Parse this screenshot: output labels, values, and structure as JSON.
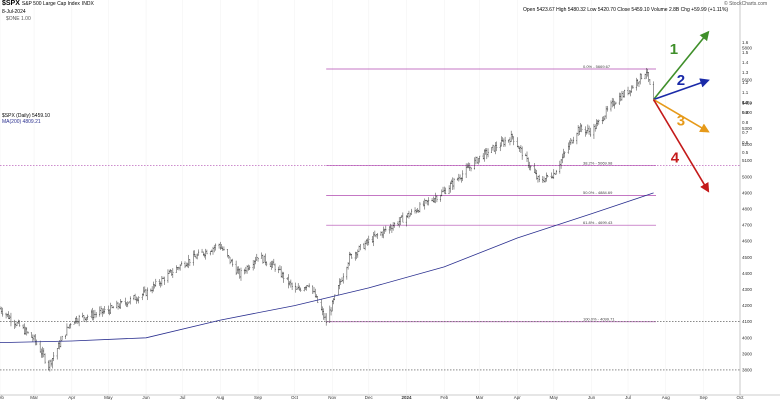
{
  "header": {
    "symbol": "$SPX",
    "name": "S&P 500 Large Cap Index",
    "exchange": "INDX",
    "date": "8-Jul-2024",
    "indicator": "$ONE 1.00",
    "ohlc": "Open 5423.67  High 5480.32  Low 5420.70  Close 5459.10  Volume 2.8B  Chg +59.99 (+1.11%)",
    "brand": "© StockCharts.com",
    "legend_price": "$SPX (Daily) 5459.10",
    "legend_ma": "MA(200) 4809.21"
  },
  "colors": {
    "bars": "#222222",
    "ma": "#2a2f8f",
    "fib": "#b04ab0",
    "arrow1": "#3f8f2a",
    "arrow2": "#1a2aa8",
    "arrow3": "#e69a1a",
    "arrow4": "#c41a1a"
  },
  "chart_data": {
    "type": "line",
    "ylim": [
      3750,
      5850
    ],
    "x_range": [
      "2023-02-01",
      "2024-10-01"
    ],
    "x_ticks": [
      "Feb",
      "Mar",
      "Apr",
      "May",
      "Jun",
      "Jul",
      "Aug",
      "Sep",
      "Oct",
      "Nov",
      "Dec",
      "2024",
      "Feb",
      "Mar",
      "Apr",
      "May",
      "Jun",
      "Jul",
      "Aug",
      "Sep",
      "Oct"
    ],
    "right_axis_labels": [
      "1.6",
      "1.5",
      "1.4",
      "1.3",
      "1.2",
      "1.1",
      "1.0",
      "0.9",
      "0.8",
      "0.7",
      "0.6",
      "0.5",
      "5800",
      "5600",
      "5459",
      "5400",
      "5300",
      "5200",
      "5100",
      "5000",
      "4900",
      "4800",
      "4700",
      "4600",
      "4500",
      "4400",
      "4300",
      "4200",
      "4100",
      "4000",
      "3900",
      "3800"
    ],
    "series": [
      {
        "x": [
          "2023-02-01",
          "2023-03-01",
          "2023-03-13",
          "2023-04-01",
          "2023-05-01",
          "2023-06-01",
          "2023-07-01",
          "2023-07-31",
          "2023-08-17",
          "2023-09-01",
          "2023-09-15",
          "2023-10-02",
          "2023-10-13",
          "2023-10-27",
          "2023-11-15",
          "2023-12-01",
          "2024-01-02",
          "2024-02-01",
          "2024-03-01",
          "2024-03-28",
          "2024-04-19",
          "2024-05-01",
          "2024-05-21",
          "2024-06-01",
          "2024-06-20",
          "2024-07-02",
          "2024-07-16",
          "2024-07-22"
        ],
        "values": [
          4180,
          3990,
          3830,
          4110,
          4170,
          4280,
          4460,
          4580,
          4390,
          4510,
          4440,
          4290,
          4340,
          4100,
          4500,
          4600,
          4760,
          4910,
          5120,
          5250,
          4970,
          5020,
          5300,
          5280,
          5470,
          5540,
          5660,
          5460
        ]
      },
      {
        "name": "MA(200)",
        "x": [
          "2023-02-01",
          "2023-04-01",
          "2023-06-01",
          "2023-08-01",
          "2023-10-01",
          "2023-12-01",
          "2024-02-01",
          "2024-04-01",
          "2024-06-01",
          "2024-07-22"
        ],
        "values": [
          3970,
          3980,
          4000,
          4110,
          4200,
          4310,
          4440,
          4620,
          4770,
          4900
        ]
      }
    ],
    "fib_levels": [
      {
        "label": "0.0% - 5669.67",
        "value": 5669.67
      },
      {
        "label": "38.2% - 5069.98",
        "value": 5069.98
      },
      {
        "label": "50.0% - 4884.69",
        "value": 4884.69
      },
      {
        "label": "61.8% - 4699.43",
        "value": 4699.43
      },
      {
        "label": "100.0% - 4099.71",
        "value": 4099.71
      }
    ],
    "reference_lines": [
      5069.98,
      4099.71,
      3800
    ],
    "scenarios": [
      {
        "label": "1",
        "target": 5900
      },
      {
        "label": "2",
        "target": 5600
      },
      {
        "label": "3",
        "target": 5280
      },
      {
        "label": "4",
        "target": 4910
      }
    ],
    "scenario_origin": {
      "x": "2024-07-22",
      "value": 5480
    },
    "scenario_end": "2024-09-05"
  }
}
